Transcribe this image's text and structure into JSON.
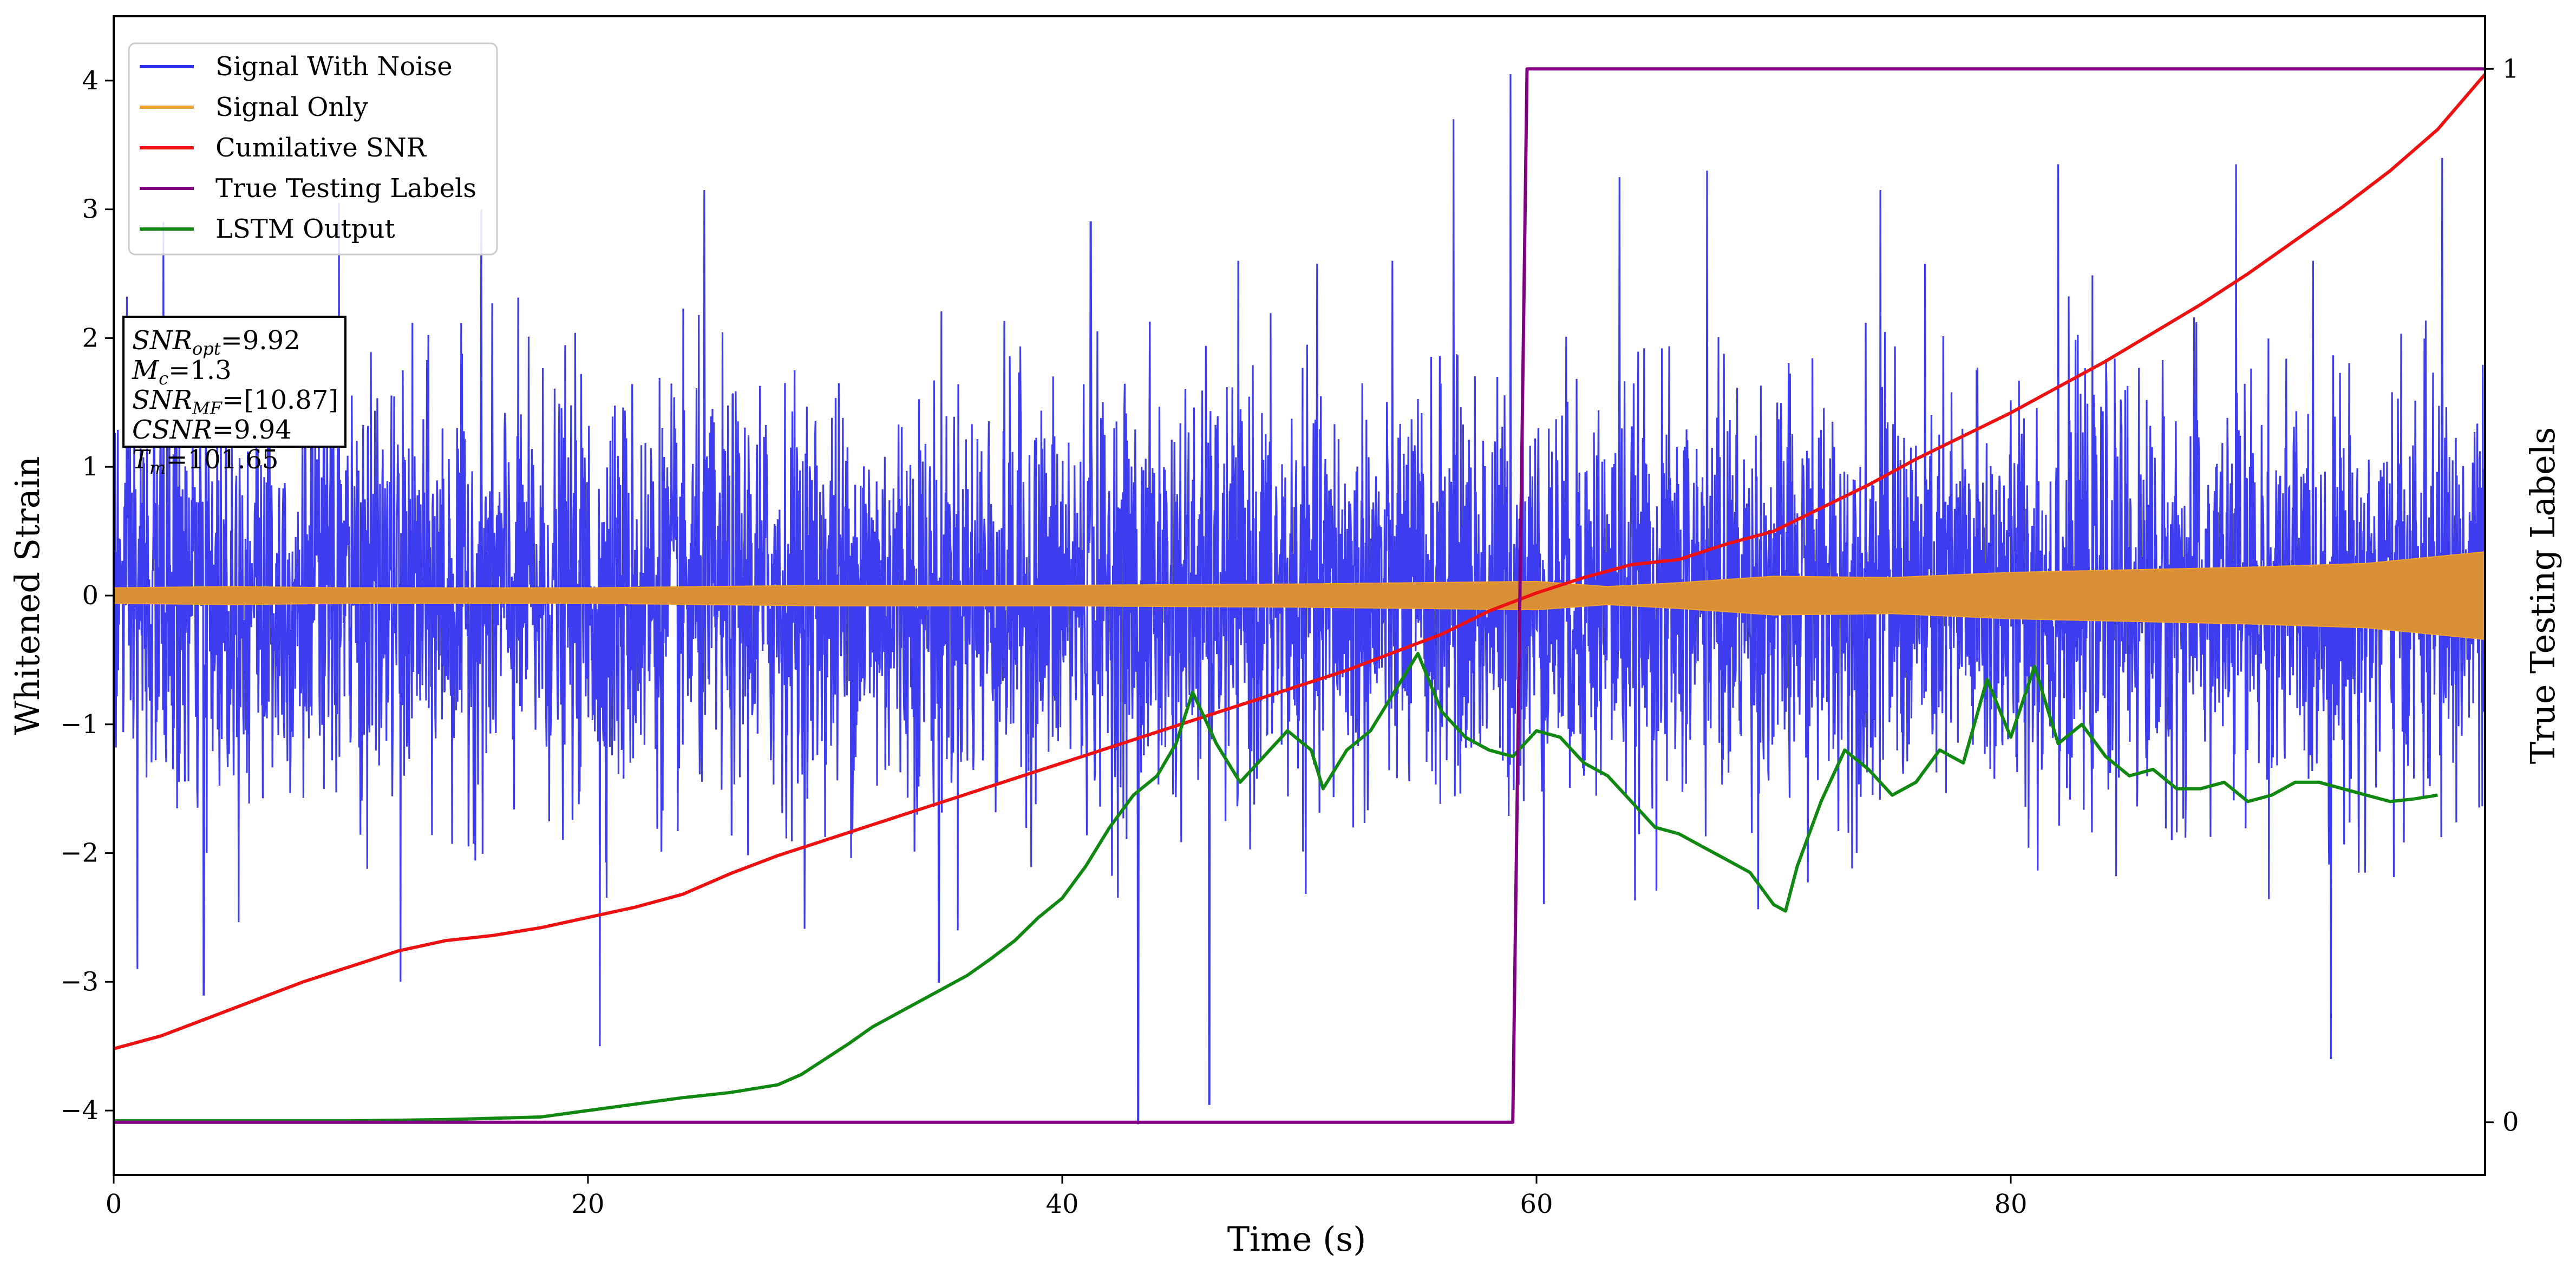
{
  "chart_data": {
    "type": "line",
    "xlabel": "Time (s)",
    "ylabel": "Whitened Strain",
    "y2label": "True Testing Labels",
    "xlim": [
      0,
      100
    ],
    "ylim": [
      -4.5,
      4.5
    ],
    "y2lim": [
      -0.05,
      1.05
    ],
    "xticks": [
      0,
      20,
      40,
      60,
      80
    ],
    "yticks": [
      -4,
      -3,
      -2,
      -1,
      0,
      1,
      2,
      3,
      4
    ],
    "y2ticks": [
      0,
      1
    ],
    "legend_position": "top-left",
    "series": [
      {
        "name": "Signal With Noise",
        "color": "#3333ee",
        "axis": "left",
        "style": "dense-noise",
        "envelope": {
          "x": [
            0,
            100
          ],
          "typical_low": -1.5,
          "typical_high": 1.5
        },
        "notable_peaks": [
          {
            "x": 1.0,
            "y": -2.9
          },
          {
            "x": 2.1,
            "y": 2.9
          },
          {
            "x": 3.8,
            "y": -3.1
          },
          {
            "x": 9.5,
            "y": 3.05
          },
          {
            "x": 12.1,
            "y": -3.0
          },
          {
            "x": 15.5,
            "y": 3.0
          },
          {
            "x": 20.5,
            "y": -3.5
          },
          {
            "x": 24.9,
            "y": 3.15
          },
          {
            "x": 34.8,
            "y": -3.0
          },
          {
            "x": 41.2,
            "y": 2.9
          },
          {
            "x": 43.2,
            "y": -4.1
          },
          {
            "x": 46.2,
            "y": -3.95
          },
          {
            "x": 56.5,
            "y": 3.7
          },
          {
            "x": 58.9,
            "y": 4.05
          },
          {
            "x": 63.5,
            "y": 3.25
          },
          {
            "x": 67.2,
            "y": 3.3
          },
          {
            "x": 74.5,
            "y": 3.15
          },
          {
            "x": 82.0,
            "y": 3.35
          },
          {
            "x": 89.5,
            "y": 3.35
          },
          {
            "x": 93.5,
            "y": -3.6
          },
          {
            "x": 98.2,
            "y": 3.4
          }
        ]
      },
      {
        "name": "Signal Only",
        "color": "#f0a030",
        "axis": "left",
        "style": "chirp-band",
        "amplitude": {
          "x": [
            0,
            5,
            10,
            20,
            30,
            40,
            50,
            55,
            60,
            63,
            66,
            70,
            75,
            80,
            85,
            90,
            95,
            100
          ],
          "a": [
            0.06,
            0.07,
            0.06,
            0.06,
            0.08,
            0.08,
            0.09,
            0.1,
            0.11,
            0.07,
            0.1,
            0.15,
            0.14,
            0.18,
            0.2,
            0.22,
            0.25,
            0.34
          ]
        }
      },
      {
        "name": "Cumilative SNR",
        "color": "#ee1111",
        "axis": "left",
        "x": [
          0,
          2,
          4,
          6,
          8,
          10,
          12,
          14,
          16,
          18,
          20,
          22,
          24,
          26,
          28,
          30,
          32,
          34,
          36,
          38,
          40,
          42,
          44,
          46,
          48,
          50,
          52,
          54,
          56,
          58,
          60,
          62,
          64,
          66,
          68,
          70,
          72,
          74,
          76,
          78,
          80,
          82,
          84,
          86,
          88,
          90,
          92,
          94,
          96,
          98,
          100
        ],
        "y": [
          -3.52,
          -3.42,
          -3.28,
          -3.14,
          -3.0,
          -2.88,
          -2.76,
          -2.68,
          -2.64,
          -2.58,
          -2.5,
          -2.42,
          -2.32,
          -2.16,
          -2.02,
          -1.9,
          -1.78,
          -1.66,
          -1.54,
          -1.42,
          -1.3,
          -1.18,
          -1.06,
          -0.94,
          -0.82,
          -0.7,
          -0.58,
          -0.44,
          -0.3,
          -0.12,
          0.02,
          0.14,
          0.24,
          0.28,
          0.4,
          0.5,
          0.68,
          0.86,
          1.06,
          1.24,
          1.42,
          1.62,
          1.82,
          2.04,
          2.26,
          2.5,
          2.76,
          3.02,
          3.3,
          3.62,
          4.05
        ]
      },
      {
        "name": "True Testing Labels",
        "color": "#800080",
        "axis": "right",
        "x": [
          0,
          59.0,
          59.6,
          100
        ],
        "y": [
          0,
          0,
          1,
          1
        ]
      },
      {
        "name": "LSTM Output",
        "color": "#118811",
        "axis": "left",
        "x": [
          0,
          10,
          14,
          18,
          20,
          22,
          24,
          26,
          28,
          29,
          30,
          31,
          32,
          33,
          34,
          35,
          36,
          37,
          38,
          39,
          40,
          41,
          42,
          43,
          44,
          44.8,
          45.5,
          46.5,
          47.5,
          48.5,
          49.5,
          50.5,
          51,
          52,
          53,
          54,
          55,
          56,
          57,
          58,
          59,
          60,
          61,
          62,
          63,
          64,
          65,
          66,
          67,
          68,
          69,
          70,
          70.5,
          71,
          72,
          73,
          74,
          75,
          76,
          77,
          78,
          79,
          80,
          81,
          82,
          83,
          84,
          85,
          86,
          87,
          88,
          89,
          90,
          91,
          92,
          93,
          94,
          95,
          96,
          97,
          98
        ],
        "y": [
          -4.08,
          -4.08,
          -4.07,
          -4.05,
          -4.0,
          -3.95,
          -3.9,
          -3.86,
          -3.8,
          -3.72,
          -3.6,
          -3.48,
          -3.35,
          -3.25,
          -3.15,
          -3.05,
          -2.95,
          -2.82,
          -2.68,
          -2.5,
          -2.35,
          -2.1,
          -1.8,
          -1.55,
          -1.4,
          -1.15,
          -0.75,
          -1.15,
          -1.45,
          -1.25,
          -1.05,
          -1.2,
          -1.5,
          -1.2,
          -1.05,
          -0.75,
          -0.45,
          -0.9,
          -1.1,
          -1.2,
          -1.25,
          -1.05,
          -1.1,
          -1.3,
          -1.4,
          -1.6,
          -1.8,
          -1.85,
          -1.95,
          -2.05,
          -2.15,
          -2.4,
          -2.45,
          -2.1,
          -1.6,
          -1.2,
          -1.35,
          -1.55,
          -1.45,
          -1.2,
          -1.3,
          -0.65,
          -1.1,
          -0.55,
          -1.15,
          -1.0,
          -1.25,
          -1.4,
          -1.35,
          -1.5,
          -1.5,
          -1.45,
          -1.6,
          -1.55,
          -1.45,
          -1.45,
          -1.5,
          -1.55,
          -1.6,
          -1.58,
          -1.55
        ]
      }
    ]
  },
  "info_box": {
    "snr_opt": "=9.92",
    "mc": "=1.3",
    "snr_mf": "=[10.87]",
    "csnr": "=9.94",
    "tm": "=101.65"
  }
}
